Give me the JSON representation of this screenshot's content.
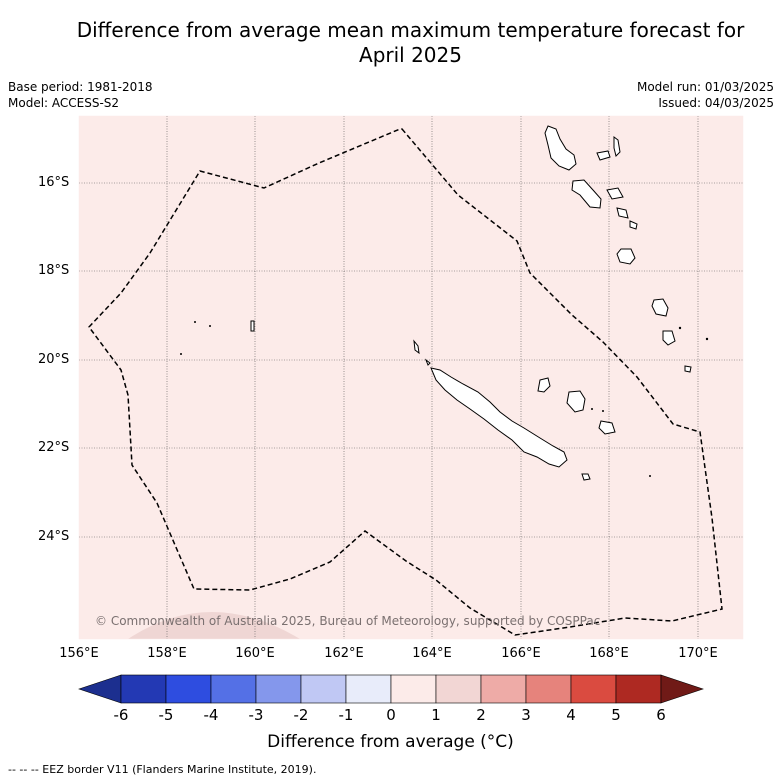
{
  "header": {
    "title_line1": "Difference from average mean maximum temperature forecast for",
    "title_line2": "April 2025",
    "base_period": "Base period: 1981-2018",
    "model": "Model: ACCESS-S2",
    "model_run": "Model run: 01/03/2025",
    "issued": "Issued: 04/03/2025"
  },
  "map": {
    "background_color": "#fcebe9",
    "lat_labels": [
      "16°S",
      "18°S",
      "20°S",
      "22°S",
      "24°S"
    ],
    "lon_labels": [
      "156°E",
      "158°E",
      "160°E",
      "162°E",
      "164°E",
      "166°E",
      "168°E",
      "170°E"
    ],
    "copyright": "© Commonwealth of Australia 2025, Bureau of Meteorology, supported by COSPPac"
  },
  "colorbar": {
    "ticks": [
      "-6",
      "-5",
      "-4",
      "-3",
      "-2",
      "-1",
      "0",
      "1",
      "2",
      "3",
      "4",
      "5",
      "6"
    ],
    "colors": [
      "#1c2f8f",
      "#2339b4",
      "#2e4de0",
      "#5470e6",
      "#8497ec",
      "#c0c8f4",
      "#e8ecfa",
      "#fcebe9",
      "#f2d6d4",
      "#eeaba7",
      "#e6837c",
      "#da4b40",
      "#ae2922",
      "#701a17"
    ],
    "title": "Difference from average (°C)"
  },
  "footer": {
    "legend_text": "-- -- -- EEZ border V11 (Flanders Marine Institute, 2019)."
  }
}
